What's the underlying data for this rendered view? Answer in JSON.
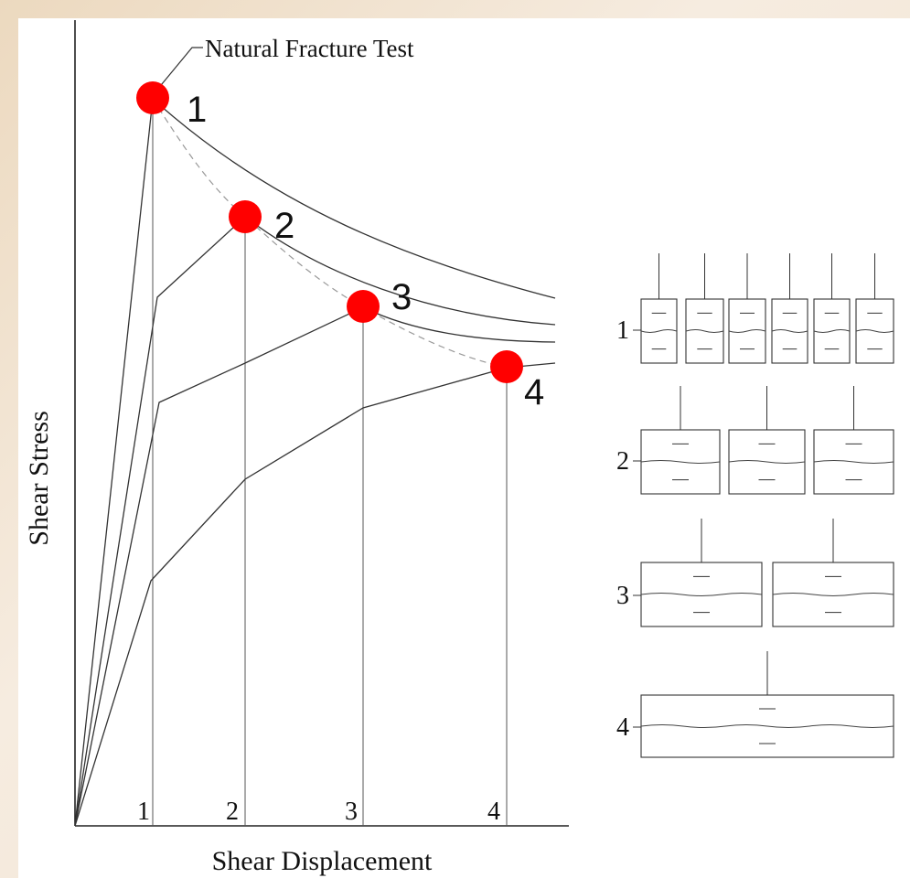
{
  "title_callout": "Natural Fracture Test",
  "axes": {
    "y_label": "Shear Stress",
    "x_label": "Shear Displacement",
    "x_ticks": [
      "1",
      "2",
      "3",
      "4"
    ]
  },
  "peak_labels": [
    "1",
    "2",
    "3",
    "4"
  ],
  "specimen_rows": [
    {
      "label": "1",
      "count": 6
    },
    {
      "label": "2",
      "count": 3
    },
    {
      "label": "3",
      "count": 2
    },
    {
      "label": "4",
      "count": 1
    }
  ],
  "colors": {
    "peak_marker": "#ff0000",
    "line": "#333333",
    "dashed": "#9a9a9a",
    "background": "#ffffff"
  }
}
